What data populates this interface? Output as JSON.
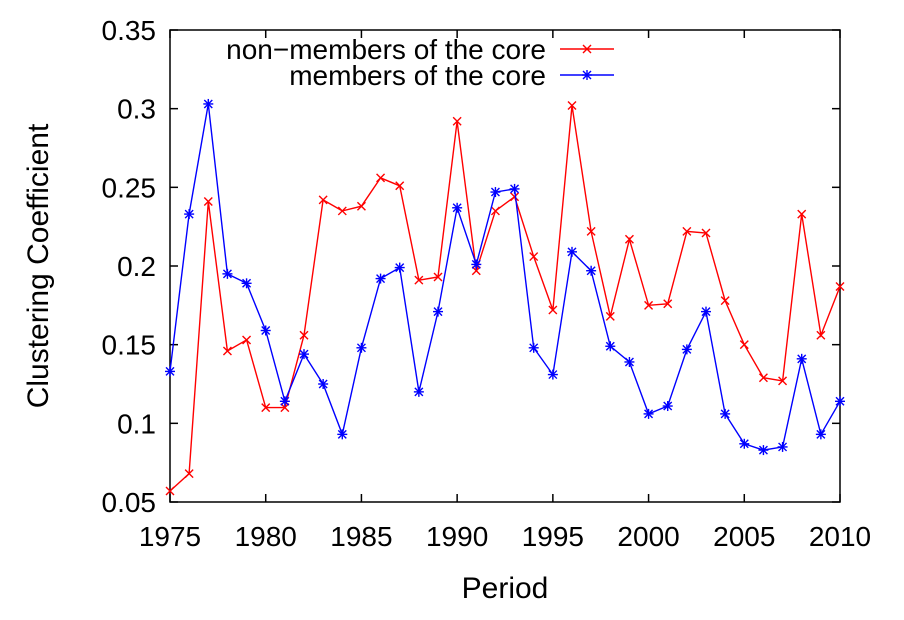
{
  "chart_data": {
    "type": "line",
    "xlabel": "Period",
    "ylabel": "Clustering Coefficient",
    "xlim": [
      1975,
      2010
    ],
    "ylim": [
      0.05,
      0.35
    ],
    "xticks": [
      "1975",
      "1980",
      "1985",
      "1990",
      "1995",
      "2000",
      "2005",
      "2010"
    ],
    "yticks": [
      "0.05",
      "0.1",
      "0.15",
      "0.2",
      "0.25",
      "0.3",
      "0.35"
    ],
    "grid": false,
    "legend_position": "top-right",
    "x": [
      1975,
      1976,
      1977,
      1978,
      1979,
      1980,
      1981,
      1982,
      1983,
      1984,
      1985,
      1986,
      1987,
      1988,
      1989,
      1990,
      1991,
      1992,
      1993,
      1994,
      1995,
      1996,
      1997,
      1998,
      1999,
      2000,
      2001,
      2002,
      2003,
      2004,
      2005,
      2006,
      2007,
      2008,
      2009,
      2010
    ],
    "series": [
      {
        "name": "non−members of the core",
        "color": "#ff0000",
        "marker": "x",
        "values": [
          0.057,
          0.068,
          0.241,
          0.146,
          0.153,
          0.11,
          0.11,
          0.156,
          0.242,
          0.235,
          0.238,
          0.256,
          0.251,
          0.191,
          0.193,
          0.292,
          0.197,
          0.235,
          0.244,
          0.206,
          0.172,
          0.302,
          0.222,
          0.168,
          0.217,
          0.175,
          0.176,
          0.222,
          0.221,
          0.178,
          0.15,
          0.129,
          0.127,
          0.233,
          0.156,
          0.187
        ]
      },
      {
        "name": "members of the core",
        "color": "#0000ff",
        "marker": "asterisk",
        "values": [
          0.133,
          0.233,
          0.303,
          0.195,
          0.189,
          0.159,
          0.114,
          0.144,
          0.125,
          0.093,
          0.148,
          0.192,
          0.199,
          0.12,
          0.171,
          0.237,
          0.201,
          0.247,
          0.249,
          0.148,
          0.131,
          0.209,
          0.197,
          0.149,
          0.139,
          0.106,
          0.111,
          0.147,
          0.171,
          0.106,
          0.087,
          0.083,
          0.085,
          0.141,
          0.093,
          0.114
        ]
      }
    ]
  }
}
